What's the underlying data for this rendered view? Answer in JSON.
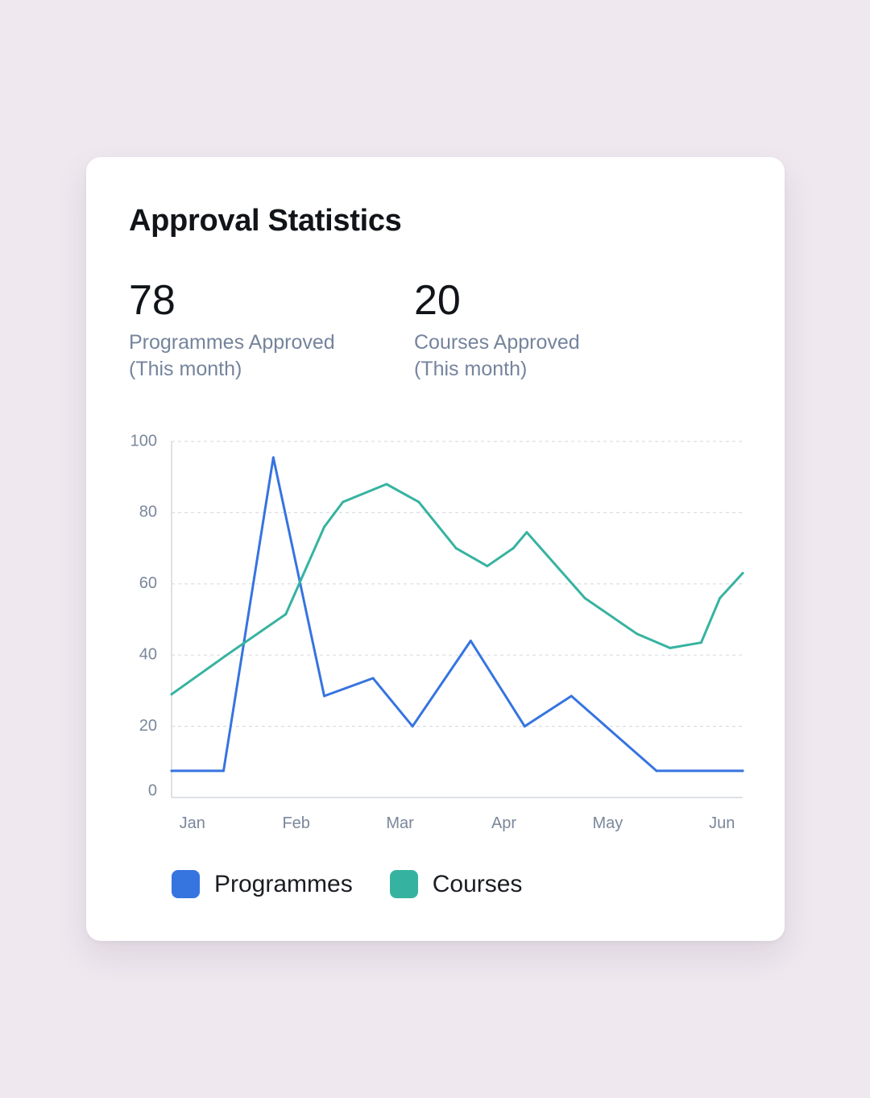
{
  "card": {
    "title": "Approval Statistics"
  },
  "stats": {
    "programmes": {
      "value": "78",
      "label_line1": "Programmes Approved",
      "label_line2": "(This month)"
    },
    "courses": {
      "value": "20",
      "label_line1": "Courses Approved",
      "label_line2": "(This month)"
    }
  },
  "colors": {
    "programmes": "#3674e0",
    "courses": "#36b3a0",
    "grid": "#d9dde3",
    "axis": "#d4d8de"
  },
  "chart_data": {
    "type": "line",
    "title": "",
    "xlabel": "",
    "ylabel": "",
    "ylim": [
      0,
      100
    ],
    "yticks": [
      "0",
      "20",
      "40",
      "60",
      "80",
      "100"
    ],
    "xlim": [
      0,
      5.5
    ],
    "xticks": [
      {
        "label": "Jan",
        "x": 0.2
      },
      {
        "label": "Feb",
        "x": 1.2
      },
      {
        "label": "Mar",
        "x": 2.2
      },
      {
        "label": "Apr",
        "x": 3.2
      },
      {
        "label": "May",
        "x": 4.2
      },
      {
        "label": "Jun",
        "x": 5.3
      }
    ],
    "grid": true,
    "legend_position": "bottom-left",
    "series": [
      {
        "name": "Programmes",
        "key": "programmes",
        "points": [
          [
            0,
            7.5
          ],
          [
            0.5,
            7.5
          ],
          [
            0.98,
            95.5
          ],
          [
            1.47,
            28.5
          ],
          [
            1.94,
            33.5
          ],
          [
            2.32,
            20
          ],
          [
            2.88,
            44
          ],
          [
            3.4,
            20
          ],
          [
            3.85,
            28.5
          ],
          [
            4.67,
            7.5
          ],
          [
            5.5,
            7.5
          ]
        ]
      },
      {
        "name": "Courses",
        "key": "courses",
        "points": [
          [
            0,
            29
          ],
          [
            0.53,
            40
          ],
          [
            1.1,
            51.5
          ],
          [
            1.47,
            76
          ],
          [
            1.65,
            83
          ],
          [
            2.07,
            88
          ],
          [
            2.38,
            83
          ],
          [
            2.74,
            70
          ],
          [
            3.04,
            65
          ],
          [
            3.29,
            70
          ],
          [
            3.42,
            74.5
          ],
          [
            3.98,
            56
          ],
          [
            4.48,
            46
          ],
          [
            4.8,
            42
          ],
          [
            5.1,
            43.5
          ],
          [
            5.28,
            56
          ],
          [
            5.5,
            63
          ]
        ]
      }
    ]
  },
  "legend": {
    "items": [
      {
        "label": "Programmes",
        "key": "programmes"
      },
      {
        "label": "Courses",
        "key": "courses"
      }
    ]
  }
}
